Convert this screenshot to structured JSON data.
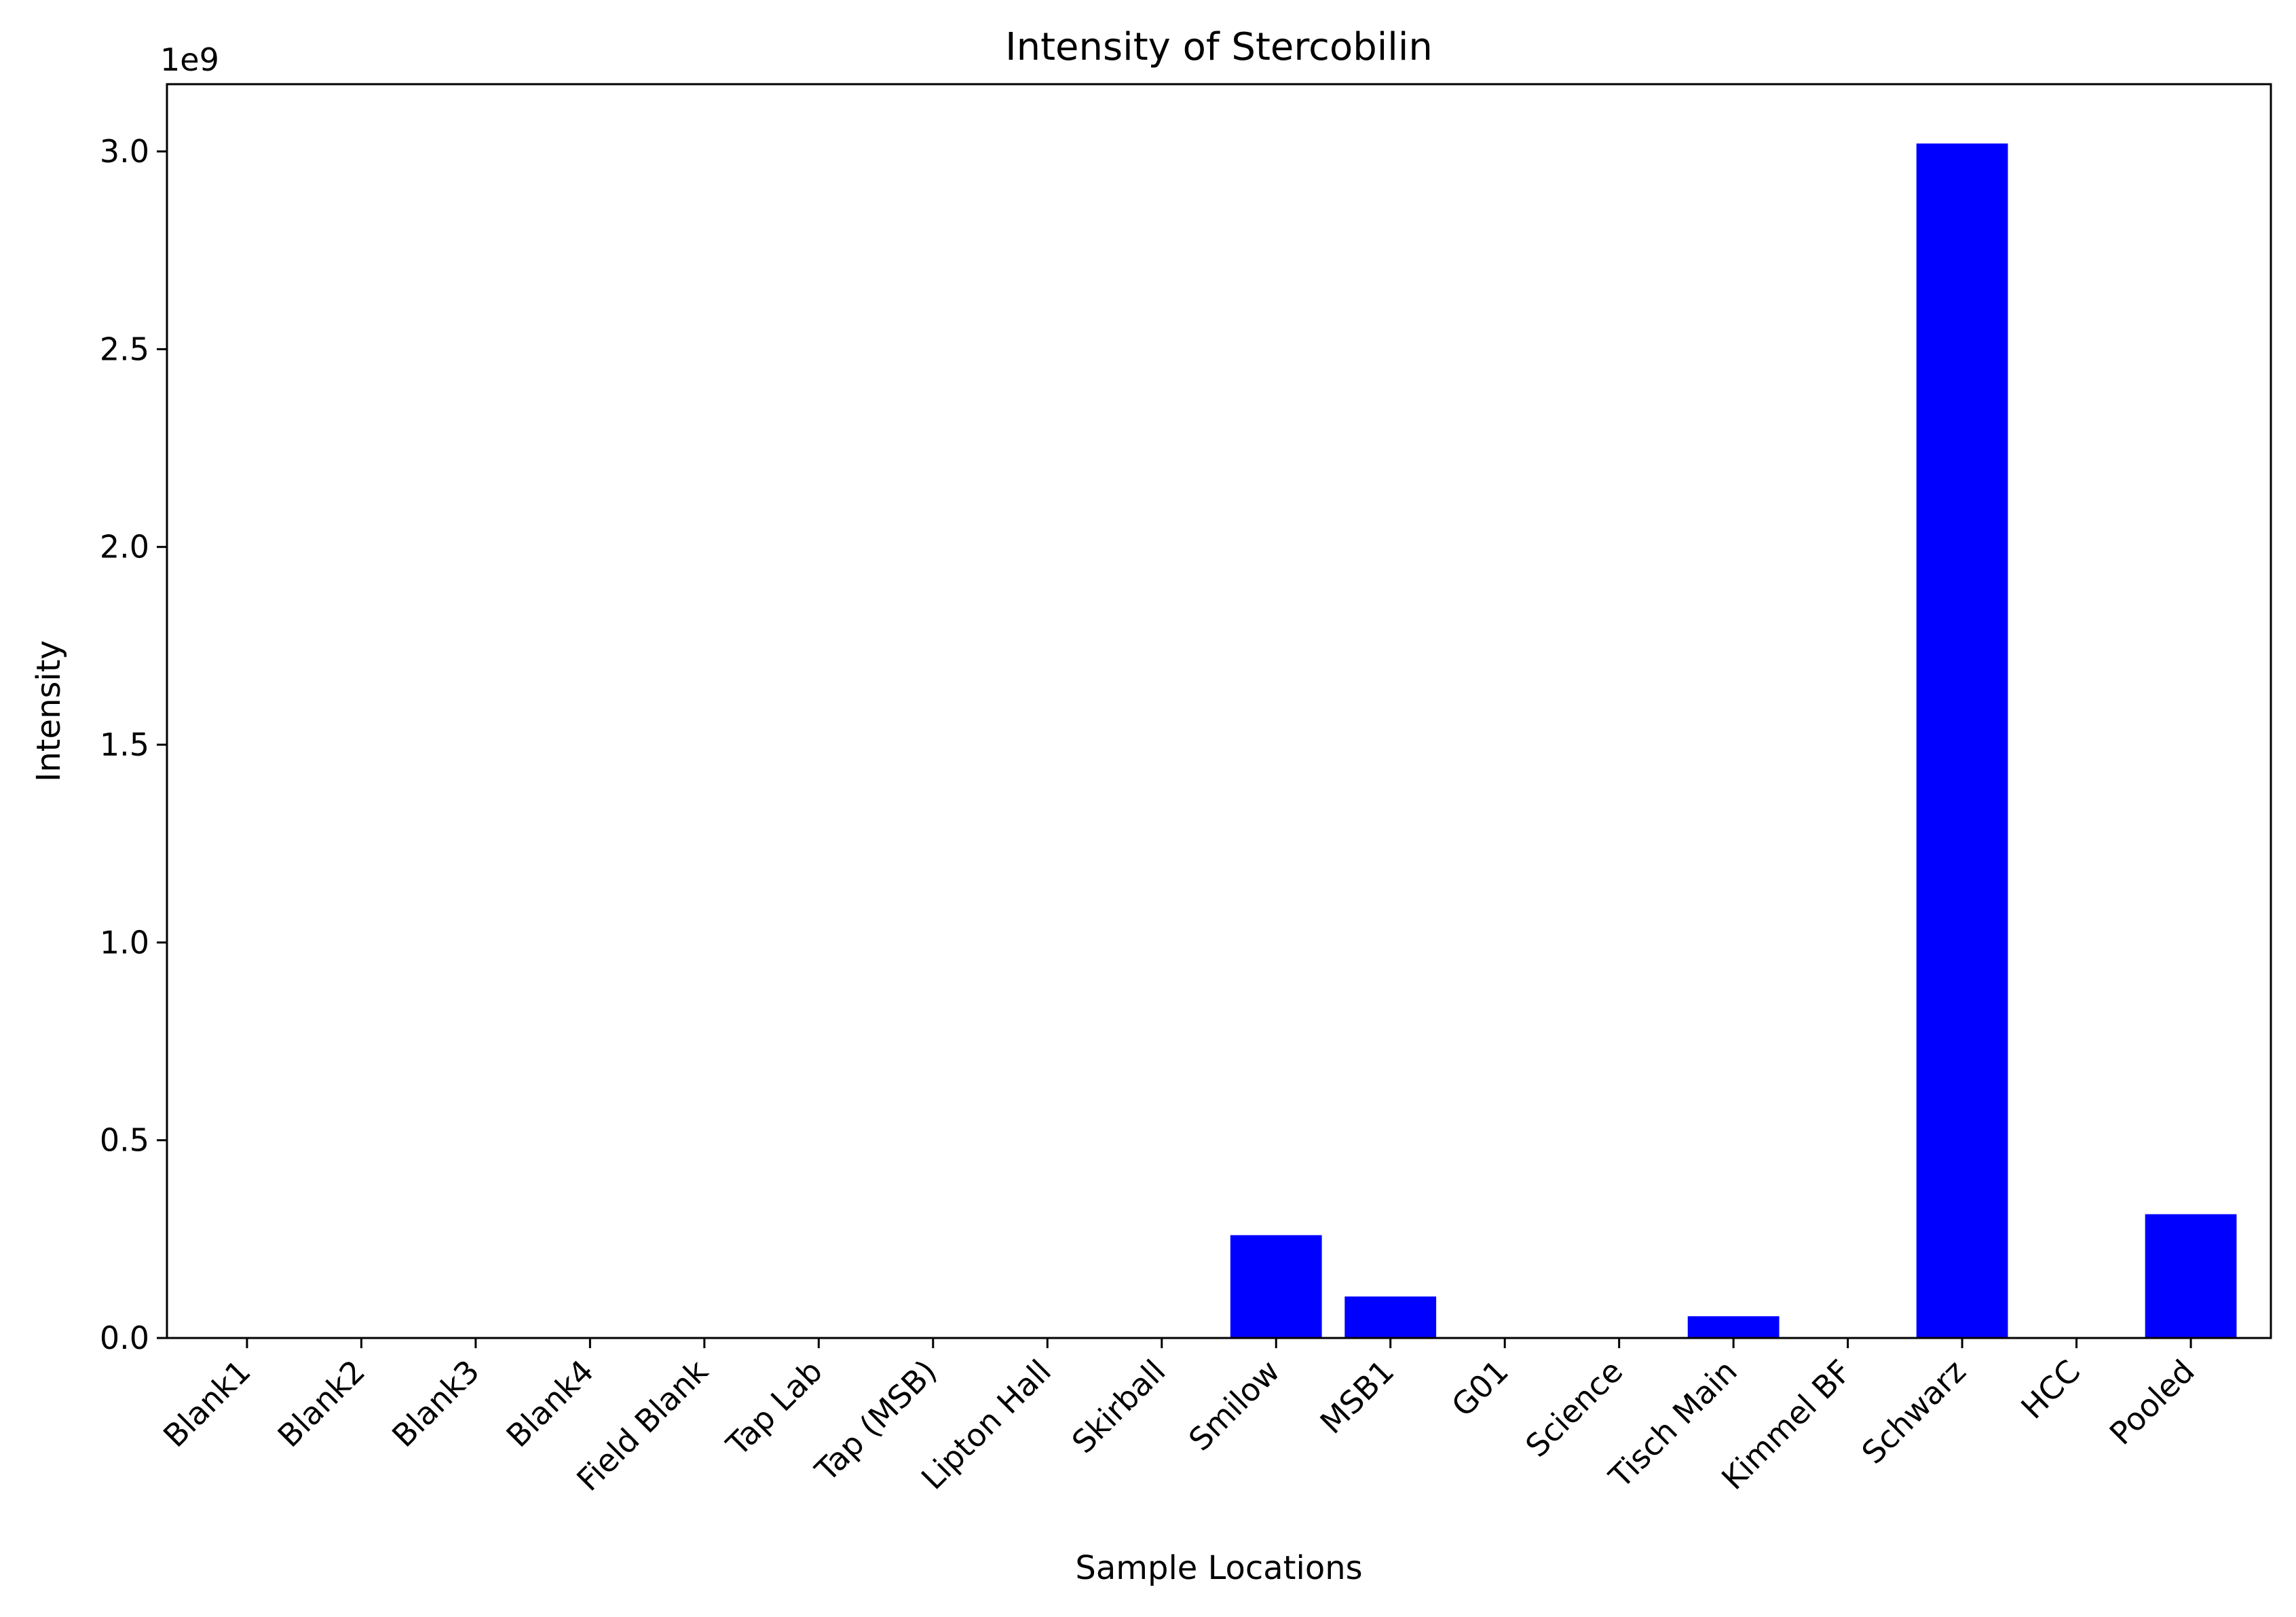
{
  "chart_data": {
    "type": "bar",
    "title": "Intensity of Stercobilin",
    "xlabel": "Sample Locations",
    "ylabel": "Intensity",
    "y_offset_label": "1e9",
    "categories": [
      "Blank1",
      "Blank2",
      "Blank3",
      "Blank4",
      "Field Blank",
      "Tap Lab",
      "Tap (MSB)",
      "Lipton Hall",
      "Skirball",
      "Smilow",
      "MSB1",
      "G01",
      "Science",
      "Tisch Main",
      "Kimmel BF",
      "Schwarz",
      "HCC",
      "Pooled"
    ],
    "values": [
      0,
      0,
      0,
      0,
      0,
      0,
      0,
      0,
      0,
      260000000,
      105000000,
      0,
      0,
      55000000,
      0,
      3020000000,
      0,
      313000000
    ],
    "ylim": [
      0,
      3170000000
    ],
    "yticks": [
      0,
      0.5,
      1.0,
      1.5,
      2.0,
      2.5,
      3.0
    ],
    "ytick_labels": [
      "0.0",
      "0.5",
      "1.0",
      "1.5",
      "2.0",
      "2.5",
      "3.0"
    ],
    "bar_color": "#0000ff",
    "grid": false
  }
}
